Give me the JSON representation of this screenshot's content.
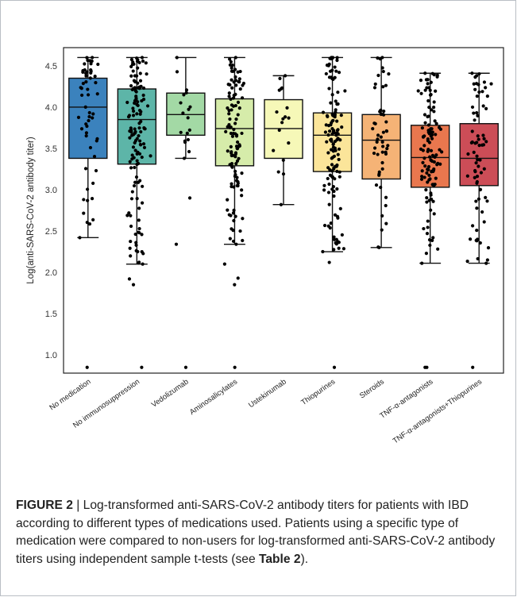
{
  "caption": {
    "label": "FIGURE 2",
    "separator": " | ",
    "text": "Log-transformed anti-SARS-CoV-2 antibody titers for patients with IBD according to different types of medications used. Patients using a specific type of medication were compared to non-users for log-transformed anti-SARS-CoV-2 antibody titers using independent sample t-tests (see ",
    "table_ref": "Table 2",
    "tail": ")."
  },
  "chart_data": {
    "type": "box",
    "ylabel": "Log(anti-SARS-CoV-2 antibody titer)",
    "xlabel": "",
    "ylim": [
      0.78,
      4.72
    ],
    "yticks": [
      "1.0",
      "1.5",
      "2.0",
      "2.5",
      "3.0",
      "3.5",
      "4.0",
      "4.5"
    ],
    "grid": false,
    "categories": [
      {
        "name": "No medication",
        "color": "#3b82bd",
        "whisker_low": 2.42,
        "q1": 3.38,
        "median": 4.0,
        "q3": 4.35,
        "whisker_high": 4.6,
        "n": 55,
        "outliers": [
          0.85
        ]
      },
      {
        "name": "No immunosuppression",
        "color": "#5db5a8",
        "whisker_low": 2.1,
        "q1": 3.31,
        "median": 3.85,
        "q3": 4.22,
        "whisker_high": 4.6,
        "n": 130,
        "outliers": [
          1.85,
          1.92,
          0.85
        ]
      },
      {
        "name": "Vedolizumab",
        "color": "#a3d9a5",
        "whisker_low": 3.38,
        "q1": 3.66,
        "median": 3.91,
        "q3": 4.17,
        "whisker_high": 4.6,
        "n": 16,
        "outliers": [
          2.9,
          2.34,
          0.85
        ]
      },
      {
        "name": "Aminosalicylates",
        "color": "#d6ecaa",
        "whisker_low": 2.34,
        "q1": 3.29,
        "median": 3.74,
        "q3": 4.1,
        "whisker_high": 4.6,
        "n": 110,
        "outliers": [
          2.1,
          1.93,
          1.85,
          0.85
        ]
      },
      {
        "name": "Ustekinumab",
        "color": "#f6f8b8",
        "whisker_low": 2.82,
        "q1": 3.38,
        "median": 3.74,
        "q3": 4.09,
        "whisker_high": 4.38,
        "n": 16,
        "outliers": []
      },
      {
        "name": "Thiopurines",
        "color": "#fbe59a",
        "whisker_low": 2.25,
        "q1": 3.22,
        "median": 3.66,
        "q3": 3.93,
        "whisker_high": 4.6,
        "n": 130,
        "outliers": [
          2.12,
          0.85
        ]
      },
      {
        "name": "Steroids",
        "color": "#f5b376",
        "whisker_low": 2.3,
        "q1": 3.13,
        "median": 3.6,
        "q3": 3.91,
        "whisker_high": 4.6,
        "n": 50,
        "outliers": []
      },
      {
        "name": "TNF-α-antagonists",
        "color": "#e9774e",
        "whisker_low": 2.11,
        "q1": 3.03,
        "median": 3.39,
        "q3": 3.78,
        "whisker_high": 4.41,
        "n": 120,
        "outliers": [
          0.85,
          0.85
        ]
      },
      {
        "name": "TNF-α-antagonists+Thiopurines",
        "color": "#cc4d57",
        "whisker_low": 2.11,
        "q1": 3.05,
        "median": 3.38,
        "q3": 3.8,
        "whisker_high": 4.41,
        "n": 70,
        "outliers": [
          0.85
        ]
      }
    ]
  }
}
